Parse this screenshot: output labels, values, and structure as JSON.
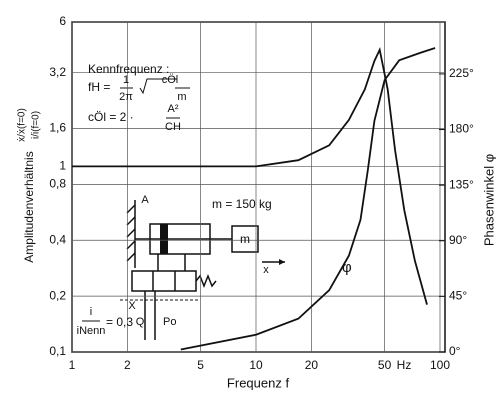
{
  "chart_data": {
    "type": "line",
    "xlabel": "Frequenz f",
    "ylabel": [
      "Amplitudenverhältnis",
      "ẋ/ẋ(f=0)",
      "i/i(f=0)"
    ],
    "y2label": "Phasenwinkel φ",
    "xscale": "log",
    "yscale": "log",
    "grid": true,
    "xlim": [
      1,
      100
    ],
    "xticks": [
      1,
      2,
      5,
      10,
      20,
      50,
      100
    ],
    "ylim": [
      0.1,
      6
    ],
    "yticks": [
      6,
      {
        "value": 3.2,
        "label": "3,2"
      },
      {
        "value": 1.6,
        "label": "1,6"
      },
      1,
      {
        "value": 0.8,
        "label": "0,8"
      },
      {
        "value": 0.4,
        "label": "0,4"
      },
      {
        "value": 0.2,
        "label": "0,2"
      },
      {
        "value": 0.1,
        "label": "0,1"
      }
    ],
    "y2lim": [
      0,
      267
    ],
    "y2ticks": [
      {
        "value": 0,
        "label": "0°"
      },
      {
        "value": 45,
        "label": "45°"
      },
      {
        "value": 90,
        "label": "90°"
      },
      {
        "value": 135,
        "label": "135°"
      },
      {
        "value": 180,
        "label": "180°"
      },
      {
        "value": 225,
        "label": "225°"
      }
    ],
    "series": [
      {
        "color": "#111111",
        "axis": "y",
        "x": [
          1,
          10,
          17,
          25,
          32,
          39,
          44,
          47,
          52,
          57,
          64,
          73,
          85
        ],
        "values": [
          1,
          1,
          1.08,
          1.3,
          1.78,
          2.6,
          3.7,
          4.25,
          2.6,
          1.22,
          0.58,
          0.31,
          0.18
        ]
      },
      {
        "color": "#111111",
        "axis": "y2",
        "x": [
          3.9,
          10,
          17,
          25,
          32,
          37,
          40.5,
          44,
          50,
          60,
          78,
          94
        ],
        "values": [
          2,
          14,
          27,
          50,
          78,
          107,
          147,
          187,
          220,
          236,
          242,
          246
        ]
      }
    ],
    "annotations": [
      "Kennfrequenz :",
      "fH =",
      "1",
      "2π",
      "cÖl",
      "m",
      "cÖl = 2 ·",
      "A²",
      "CH",
      "m = 150 kg",
      "φ",
      "i",
      "iNenn",
      "= 0,3",
      "A",
      "m",
      "x",
      "X",
      "Q",
      "Po",
      "Hz"
    ]
  }
}
